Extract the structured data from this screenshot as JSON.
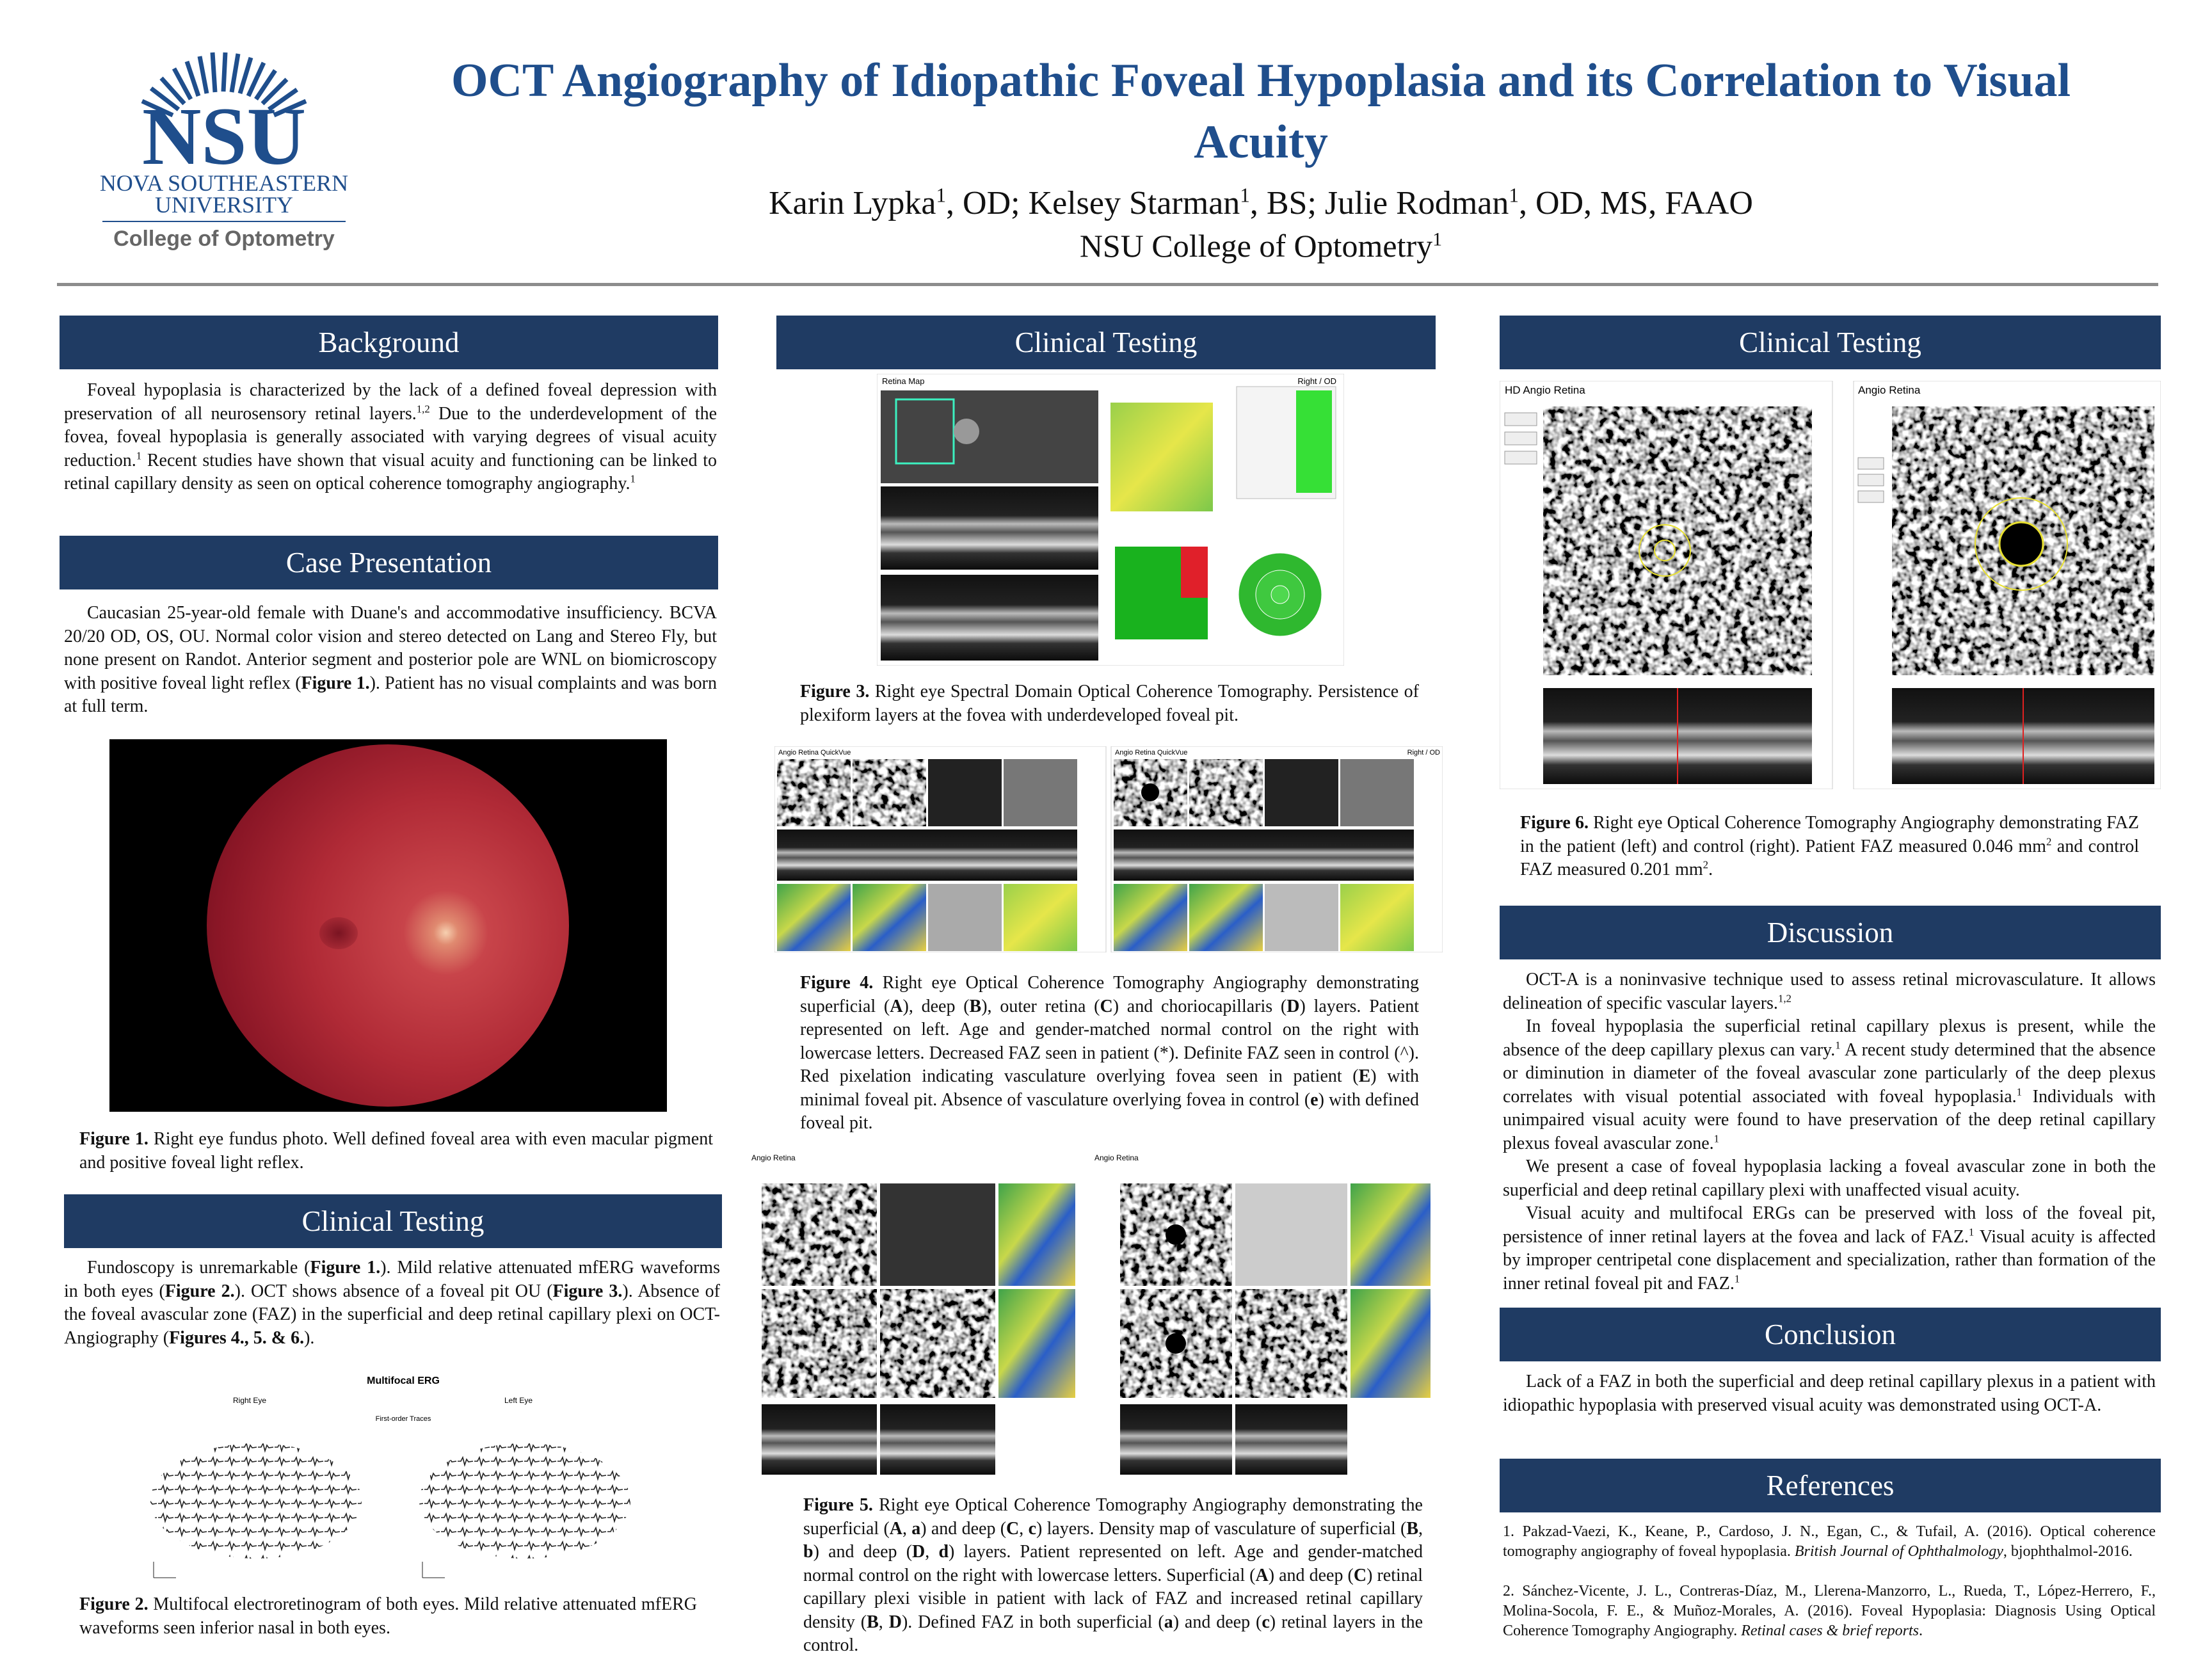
{
  "header": {
    "logo": {
      "mark": "NSU",
      "line1": "NOVA SOUTHEASTERN",
      "line2": "UNIVERSITY",
      "college": "College of Optometry"
    },
    "title": "OCT Angiography of Idiopathic Foveal Hypoplasia and its Correlation to Visual Acuity",
    "authors": [
      "Karin Lypka",
      {
        "sup": "1"
      },
      ", OD; Kelsey Starman",
      {
        "sup": "1"
      },
      ", BS; Julie Rodman",
      {
        "sup": "1"
      },
      ", OD, MS, FAAO"
    ],
    "affiliation": [
      "NSU College of Optometry",
      {
        "sup": "1"
      }
    ]
  },
  "background": {
    "heading": "Background",
    "text": [
      "Foveal hypoplasia is characterized by the lack of a defined foveal depression with preservation of all neurosensory retinal layers.",
      {
        "sup": "1,2"
      },
      " Due to the underdevelopment of the fovea, foveal hypoplasia is generally associated with varying degrees of visual acuity reduction.",
      {
        "sup": "1"
      },
      " Recent studies have shown that visual acuity and functioning can be linked to retinal capillary density as seen on optical coherence tomography angiography.",
      {
        "sup": "1"
      }
    ]
  },
  "case_presentation": {
    "heading": "Case Presentation",
    "text": [
      "Caucasian 25-year-old female with Duane's and accommodative insufficiency. BCVA 20/20 OD, OS, OU. Normal color vision and stereo detected on Lang and Stereo Fly, but none present on Randot. Anterior segment and posterior pole are WNL on biomicroscopy with positive foveal light reflex (",
      {
        "b": "Figure 1."
      },
      "). Patient has no visual complaints and was born at full term."
    ]
  },
  "figure1": {
    "caption": [
      {
        "b": "Figure 1."
      },
      " Right eye fundus photo. Well defined foveal area with even macular pigment and positive foveal light reflex."
    ]
  },
  "clinical_testing_1": {
    "heading": "Clinical Testing",
    "text": [
      "Fundoscopy is unremarkable (",
      {
        "b": "Figure 1."
      },
      "). Mild relative attenuated mfERG waveforms in both eyes (",
      {
        "b": "Figure 2."
      },
      "). OCT shows absence of a foveal pit OU (",
      {
        "b": "Figure 3."
      },
      "). Absence of the foveal avascular zone (FAZ) in the superficial and deep retinal capillary plexi on OCT-Angiography (",
      {
        "b": "Figures 4., 5. & 6."
      },
      ")."
    ]
  },
  "figure2": {
    "image_title": "Multifocal ERG",
    "right_eye": "Right Eye",
    "left_eye": "Left Eye",
    "traces": "First-order Traces",
    "caption": [
      {
        "b": "Figure 2."
      },
      " Multifocal electroretinogram of both eyes. Mild relative attenuated mfERG waveforms seen inferior nasal in both eyes."
    ]
  },
  "clinical_testing_2": {
    "heading": "Clinical Testing"
  },
  "figure3": {
    "panel_title": "Retina Map",
    "eye": "Right / OD",
    "caption": [
      {
        "b": "Figure 3."
      },
      " Right eye Spectral Domain Optical Coherence Tomography. Persistence of plexiform layers at the fovea with underdeveloped foveal pit."
    ]
  },
  "figure4": {
    "panel_titles": [
      "Angio Retina QuickVue",
      "Angio Retina QuickVue"
    ],
    "eye": "Right / OD",
    "caption": [
      {
        "b": "Figure 4."
      },
      " Right eye Optical Coherence Tomography Angiography demonstrating superficial (",
      {
        "b": "A"
      },
      "), deep (",
      {
        "b": "B"
      },
      "), outer retina (",
      {
        "b": "C"
      },
      ") and choriocapillaris (",
      {
        "b": "D"
      },
      ") layers. Patient represented on left. Age and gender-matched normal control on the right with lowercase letters. Decreased FAZ seen in patient (*). Definite FAZ seen in control (^). Red pixelation indicating vasculature overlying fovea seen in patient (",
      {
        "b": "E"
      },
      ") with minimal foveal pit. Absence of vasculature overlying fovea in control (",
      {
        "b": "e"
      },
      ") with defined foveal pit."
    ]
  },
  "figure5": {
    "panel_titles": [
      "Angio Retina",
      "Angio Retina"
    ],
    "caption": [
      {
        "b": "Figure 5."
      },
      " Right eye Optical Coherence Tomography Angiography demonstrating the superficial (",
      {
        "b": "A"
      },
      ", ",
      {
        "b": "a"
      },
      ") and deep (",
      {
        "b": "C"
      },
      ", ",
      {
        "b": "c"
      },
      ") layers. Density map of vasculature of superficial (",
      {
        "b": "B"
      },
      ", ",
      {
        "b": "b"
      },
      ") and deep (",
      {
        "b": "D"
      },
      ", ",
      {
        "b": "d"
      },
      ") layers. Patient represented on left. Age and gender-matched normal control on the right with lowercase letters. Superficial (",
      {
        "b": "A"
      },
      ") and deep (",
      {
        "b": "C"
      },
      ") retinal capillary plexi visible in patient with lack of FAZ and increased retinal capillary density (",
      {
        "b": "B"
      },
      ", ",
      {
        "b": "D"
      },
      "). Defined FAZ in both superficial (",
      {
        "b": "a"
      },
      ") and deep (",
      {
        "b": "c"
      },
      ") retinal layers in the control."
    ]
  },
  "clinical_testing_3": {
    "heading": "Clinical Testing"
  },
  "figure6": {
    "panel_titles": [
      "HD Angio Retina",
      "Angio Retina"
    ],
    "caption": [
      {
        "b": "Figure 6."
      },
      " Right eye Optical Coherence Tomography Angiography demonstrating FAZ in the patient (left) and control (right). Patient FAZ measured 0.046 mm",
      {
        "sup": "2"
      },
      " and control FAZ measured 0.201 mm",
      {
        "sup": "2"
      },
      "."
    ]
  },
  "discussion": {
    "heading": "Discussion",
    "paragraphs": [
      [
        "OCT-A is a noninvasive technique used to assess retinal microvasculature. It allows delineation of specific vascular layers.",
        {
          "sup": "1,2"
        }
      ],
      [
        "In foveal hypoplasia the superficial retinal capillary plexus is present, while the absence of the deep capillary plexus can vary.",
        {
          "sup": "1"
        },
        " A recent study determined that the absence or diminution in diameter of the foveal avascular zone particularly of the deep plexus correlates with visual potential associated with foveal hypoplasia.",
        {
          "sup": "1"
        },
        " Individuals with unimpaired visual acuity were found to have preservation of the deep retinal capillary plexus foveal avascular zone.",
        {
          "sup": "1"
        }
      ],
      [
        "We present a case of foveal hypoplasia lacking a foveal avascular zone in both the superficial and deep retinal capillary plexi with unaffected visual acuity."
      ],
      [
        "Visual acuity and multifocal ERGs can be preserved with loss of the foveal pit, persistence of inner retinal layers at the fovea and lack of FAZ.",
        {
          "sup": "1"
        },
        " Visual acuity is affected by improper centripetal cone displacement and specialization, rather than formation of the inner retinal foveal pit and FAZ.",
        {
          "sup": "1"
        }
      ]
    ]
  },
  "conclusion": {
    "heading": "Conclusion",
    "text": [
      "Lack of a FAZ in both the superficial and deep retinal capillary plexus in a patient with idiopathic hypoplasia with preserved visual acuity was demonstrated using OCT-A."
    ]
  },
  "references": {
    "heading": "References",
    "items": [
      [
        "1. Pakzad-Vaezi, K., Keane, P., Cardoso, J. N., Egan, C., & Tufail, A. (2016). Optical coherence tomography angiography of foveal hypoplasia. ",
        {
          "i": "British Journal of Ophthalmology"
        },
        ", bjophthalmol-2016."
      ],
      [
        "2. Sánchez-Vicente, J. L., Contreras-Díaz, M., Llerena-Manzorro, L., Rueda, T., López-Herrero, F., Molina-Socola, F. E., & Muñoz-Morales, A. (2016). Foveal Hypoplasia: Diagnosis Using Optical Coherence Tomography Angiography. ",
        {
          "i": "Retinal cases & brief reports"
        },
        "."
      ]
    ]
  }
}
